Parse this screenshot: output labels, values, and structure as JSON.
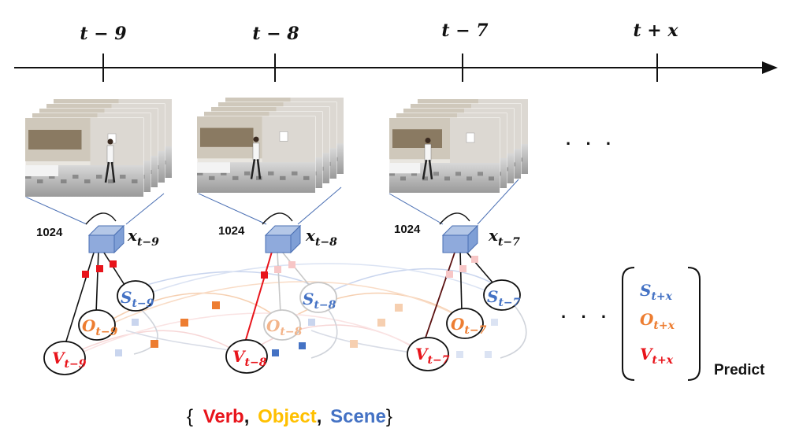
{
  "timeline": {
    "labels": [
      "t − 9",
      "t − 8",
      "t − 7",
      "t + x"
    ]
  },
  "frames": [
    {
      "dim": "1024",
      "feature_var": "x",
      "feature_sub": "t−9",
      "verb": "V",
      "verb_sub": "t−9",
      "object": "O",
      "object_sub": "t−9",
      "scene": "S",
      "scene_sub": "t−9"
    },
    {
      "dim": "1024",
      "feature_var": "x",
      "feature_sub": "t−8",
      "verb": "V",
      "verb_sub": "t−8",
      "object": "O",
      "object_sub": "t−8",
      "scene": "S",
      "scene_sub": "t−8"
    },
    {
      "dim": "1024",
      "feature_var": "x",
      "feature_sub": "t−7",
      "verb": "V",
      "verb_sub": "t−7",
      "object": "O",
      "object_sub": "t−7",
      "scene": "S",
      "scene_sub": "t−7"
    }
  ],
  "ellipsis": "· · ·",
  "prediction": {
    "scene": "S",
    "scene_sub": "t+x",
    "object": "O",
    "object_sub": "t+x",
    "verb": "V",
    "verb_sub": "t+x",
    "label": "Predict"
  },
  "legend": {
    "open": "{",
    "verb": "Verb",
    "comma1": ",",
    "object": "Object",
    "comma2": ",",
    "scene": "Scene",
    "close": "}"
  },
  "colors": {
    "verb": "#e8141b",
    "object": "#ed7d31",
    "scene": "#4472c4",
    "legend_object": "#ffc000",
    "cube": "#8faadc"
  }
}
